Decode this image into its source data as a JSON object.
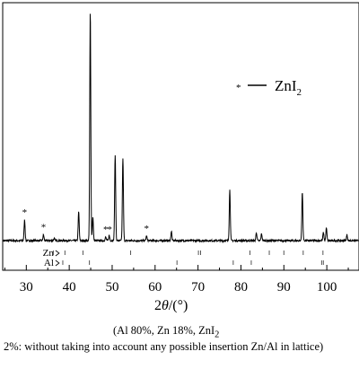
{
  "chart_data": {
    "type": "line",
    "xlabel_main": "2",
    "xlabel_theta": "θ",
    "xlabel_unit": "/(°)",
    "xlim": [
      24.5,
      107.5
    ],
    "xticks": [
      30,
      40,
      50,
      60,
      70,
      80,
      90,
      100
    ],
    "y_axis_visible": false,
    "grid": false,
    "legend": {
      "marker": "*",
      "label_main": "ZnI",
      "label_sub": "2",
      "position": "top-right"
    },
    "series": [
      {
        "baseline": 2.0,
        "peaks": [
          {
            "x": 29.6,
            "h": 3.6
          },
          {
            "x": 34.0,
            "h": 1.0
          },
          {
            "x": 36.5,
            "h": 0.4
          },
          {
            "x": 42.2,
            "h": 5.0
          },
          {
            "x": 44.9,
            "h": 40.0
          },
          {
            "x": 45.5,
            "h": 4.2
          },
          {
            "x": 48.5,
            "h": 0.6
          },
          {
            "x": 49.3,
            "h": 0.9
          },
          {
            "x": 50.7,
            "h": 15.0
          },
          {
            "x": 52.5,
            "h": 14.4
          },
          {
            "x": 58.0,
            "h": 0.8
          },
          {
            "x": 63.8,
            "h": 1.6
          },
          {
            "x": 77.4,
            "h": 8.8
          },
          {
            "x": 83.6,
            "h": 1.4
          },
          {
            "x": 84.8,
            "h": 1.2
          },
          {
            "x": 94.3,
            "h": 8.4
          },
          {
            "x": 99.2,
            "h": 1.4
          },
          {
            "x": 99.9,
            "h": 2.2
          },
          {
            "x": 104.7,
            "h": 1.0
          }
        ]
      }
    ],
    "star_markers": [
      29.6,
      34.0,
      48.5,
      49.4,
      58.0
    ],
    "reference_rows": [
      {
        "label": "Zn",
        "positions": [
          36.3,
          39.0,
          43.2,
          54.3,
          70.1,
          70.6,
          82.1,
          86.6,
          90.0,
          94.5,
          99.1
        ]
      },
      {
        "label": "Al",
        "positions": [
          38.5,
          44.7,
          65.1,
          78.2,
          82.4,
          98.8,
          99.2
        ]
      }
    ]
  },
  "caption": {
    "line1": "(Al 80%, Zn 18%, ZnI",
    "line1_sub": "2",
    "line2": "2%: without taking into account any possible insertion Zn/Al in lattice)"
  }
}
